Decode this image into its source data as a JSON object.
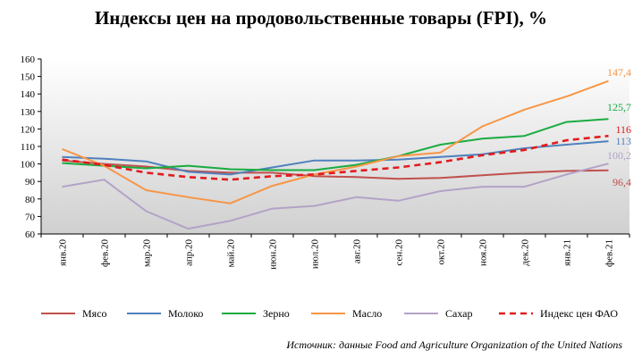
{
  "chart_data": {
    "type": "line",
    "title": "Индексы цен на продовольственные товары (FPI), %",
    "xlabel": "",
    "ylabel": "",
    "ylim": [
      60,
      160
    ],
    "yticks": [
      60,
      70,
      80,
      90,
      100,
      110,
      120,
      130,
      140,
      150,
      160
    ],
    "grid": false,
    "legend_position": "bottom",
    "categories": [
      "янв.20",
      "фев.20",
      "мар.20",
      "апр.20",
      "май.20",
      "июн.20",
      "июл.20",
      "авг.20",
      "сен.20",
      "окт.20",
      "ноя.20",
      "дек.20",
      "янв.21",
      "фев.21"
    ],
    "series": [
      {
        "name": "Мясо",
        "color": "#c0504d",
        "dashed": false,
        "end_label": "96,4",
        "values": [
          102,
          100,
          98.5,
          96,
          95,
          95,
          93,
          92.5,
          91.5,
          92,
          93.5,
          95,
          96,
          96.4
        ]
      },
      {
        "name": "Молоко",
        "color": "#4f81bd",
        "dashed": false,
        "end_label": "113",
        "values": [
          104,
          103,
          101.5,
          95.5,
          94,
          98,
          102,
          102,
          102.5,
          104,
          105.5,
          109,
          111,
          113
        ]
      },
      {
        "name": "Зерно",
        "color": "#1aab40",
        "dashed": false,
        "end_label": "125,7",
        "values": [
          100.5,
          99,
          97.5,
          99,
          97,
          96.5,
          96.5,
          99.5,
          104.5,
          111,
          114.5,
          116,
          124,
          125.7
        ]
      },
      {
        "name": "Масло",
        "color": "#f79646",
        "dashed": false,
        "end_label": "147,4",
        "values": [
          108.5,
          99,
          85,
          81,
          77.5,
          87.5,
          94,
          98.5,
          104.5,
          106.5,
          121.5,
          131,
          138.5,
          147.4
        ]
      },
      {
        "name": "Сахар",
        "color": "#b3a2c7",
        "dashed": false,
        "end_label": "100,2",
        "values": [
          87,
          91,
          73,
          63,
          67.5,
          74.5,
          76,
          81,
          79,
          84.5,
          87,
          87,
          94,
          100.2
        ]
      },
      {
        "name": "Индекс цен ФАО",
        "color": "#e31a1c",
        "dashed": true,
        "end_label": "116",
        "values": [
          102.5,
          99.5,
          95,
          92.5,
          91,
          93,
          94,
          96,
          98,
          101,
          105,
          108,
          113.5,
          116
        ]
      }
    ]
  },
  "source_text": "Источник:  данные Food and Agriculture Organization of the United Nations"
}
